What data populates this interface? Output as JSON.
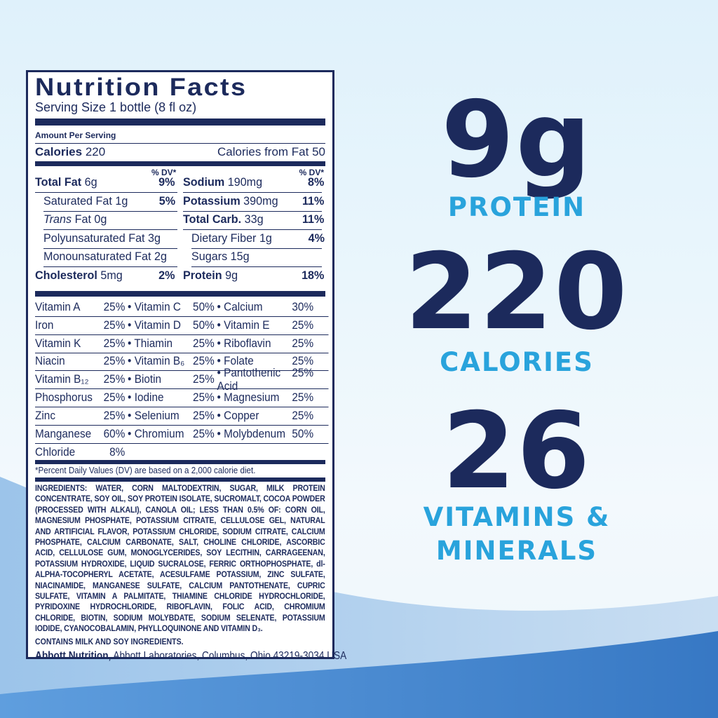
{
  "label": {
    "title": "Nutrition Facts",
    "serving_size": "Serving Size 1 bottle (8 fl oz)",
    "amount_per_serving": "Amount Per Serving",
    "calories_label": "Calories",
    "calories_value": "220",
    "calories_from_fat": "Calories from Fat 50",
    "dv_header": "% DV*",
    "left_rows": [
      {
        "name": "Total Fat",
        "amount": "6g",
        "dv": "9%"
      },
      {
        "name": "Saturated Fat",
        "amount": "1g",
        "dv": "5%"
      },
      {
        "name": "Trans",
        "amount": "Fat 0g",
        "dv": ""
      },
      {
        "name": "Polyunsaturated Fat",
        "amount": "3g",
        "dv": ""
      },
      {
        "name": "Monounsaturated Fat",
        "amount": "2g",
        "dv": ""
      },
      {
        "name": "Cholesterol",
        "amount": "5mg",
        "dv": "2%"
      }
    ],
    "right_rows": [
      {
        "name": "Sodium",
        "amount": "190mg",
        "dv": "8%"
      },
      {
        "name": "Potassium",
        "amount": "390mg",
        "dv": "11%"
      },
      {
        "name": "Total Carb.",
        "amount": "33g",
        "dv": "11%"
      },
      {
        "name": "Dietary Fiber",
        "amount": "1g",
        "dv": "4%"
      },
      {
        "name": "Sugars",
        "amount": "15g",
        "dv": ""
      },
      {
        "name": "Protein",
        "amount": "9g",
        "dv": "18%"
      }
    ],
    "vitamins": [
      [
        [
          "Vitamin A",
          "25%"
        ],
        [
          "Vitamin C",
          "50%"
        ],
        [
          "Calcium",
          "30%"
        ]
      ],
      [
        [
          "Iron",
          "25%"
        ],
        [
          "Vitamin D",
          "50%"
        ],
        [
          "Vitamin E",
          "25%"
        ]
      ],
      [
        [
          "Vitamin K",
          "25%"
        ],
        [
          "Thiamin",
          "25%"
        ],
        [
          "Riboflavin",
          "25%"
        ]
      ],
      [
        [
          "Niacin",
          "25%"
        ],
        [
          "Vitamin B₆",
          "25%"
        ],
        [
          "Folate",
          "25%"
        ]
      ],
      [
        [
          "Vitamin B₁₂",
          "25%"
        ],
        [
          "Biotin",
          "25%"
        ],
        [
          "Pantothenic Acid",
          "25%"
        ]
      ],
      [
        [
          "Phosphorus",
          "25%"
        ],
        [
          "Iodine",
          "25%"
        ],
        [
          "Magnesium",
          "25%"
        ]
      ],
      [
        [
          "Zinc",
          "25%"
        ],
        [
          "Selenium",
          "25%"
        ],
        [
          "Copper",
          "25%"
        ]
      ],
      [
        [
          "Manganese",
          "60%"
        ],
        [
          "Chromium",
          "25%"
        ],
        [
          "Molybdenum",
          "50%"
        ]
      ],
      [
        [
          "Chloride",
          "8%"
        ]
      ]
    ],
    "footnote": "*Percent Daily Values (DV) are based on a 2,000 calorie diet.",
    "ingredients_label": "INGREDIENTS:",
    "ingredients_a": " WATER, CORN MALTODEXTRIN, SUGAR, MILK PROTEIN CONCENTRATE, SOY OIL, SOY PROTEIN ISOLATE, SUCROMALT, COCOA POWDER (PROCESSED WITH ALKALI), CANOLA OIL; ",
    "less_than": "LESS THAN 0.5% OF:",
    "ingredients_b": " CORN OIL, MAGNESIUM PHOSPHATE, POTASSIUM CITRATE, CELLULOSE GEL, NATURAL AND ARTIFICIAL FLAVOR, POTASSIUM CHLORIDE, SODIUM CITRATE, CALCIUM PHOSPHATE, CALCIUM CARBONATE, SALT, CHOLINE CHLORIDE, ASCORBIC ACID, CELLULOSE GUM, MONOGLYCERIDES, SOY LECITHIN, CARRAGEENAN, POTASSIUM HYDROXIDE, LIQUID SUCRALOSE, FERRIC ORTHOPHOSPHATE, dl-ALPHA-TOCOPHERYL ACETATE, ACESULFAME POTASSIUM, ZINC SULFATE, NIACINAMIDE, MANGANESE SULFATE, CALCIUM PANTOTHENATE, CUPRIC SULFATE, VITAMIN A PALMITATE, THIAMINE CHLORIDE HYDROCHLORIDE, PYRIDOXINE HYDROCHLORIDE, RIBOFLAVIN, FOLIC ACID, CHROMIUM CHLORIDE, BIOTIN, SODIUM MOLYBDATE, SODIUM SELENATE, POTASSIUM IODIDE, CYANOCOBALAMIN, PHYLLOQUINONE AND VITAMIN D₃.",
    "contains": "CONTAINS MILK AND SOY INGREDIENTS.",
    "manufacturer": "Abbott Nutrition,",
    "address": " Abbott Laboratories, Columbus, Ohio 43219-3034 USA"
  },
  "highlights": [
    {
      "value": "9g",
      "label": "PROTEIN"
    },
    {
      "value": "220",
      "label": "CALORIES"
    },
    {
      "value": "26",
      "label": "VITAMINS &",
      "label2": "MINERALS"
    }
  ],
  "colors": {
    "navy": "#1c2a5c",
    "accent": "#29a3dc",
    "wave": "#3a7fc8"
  }
}
